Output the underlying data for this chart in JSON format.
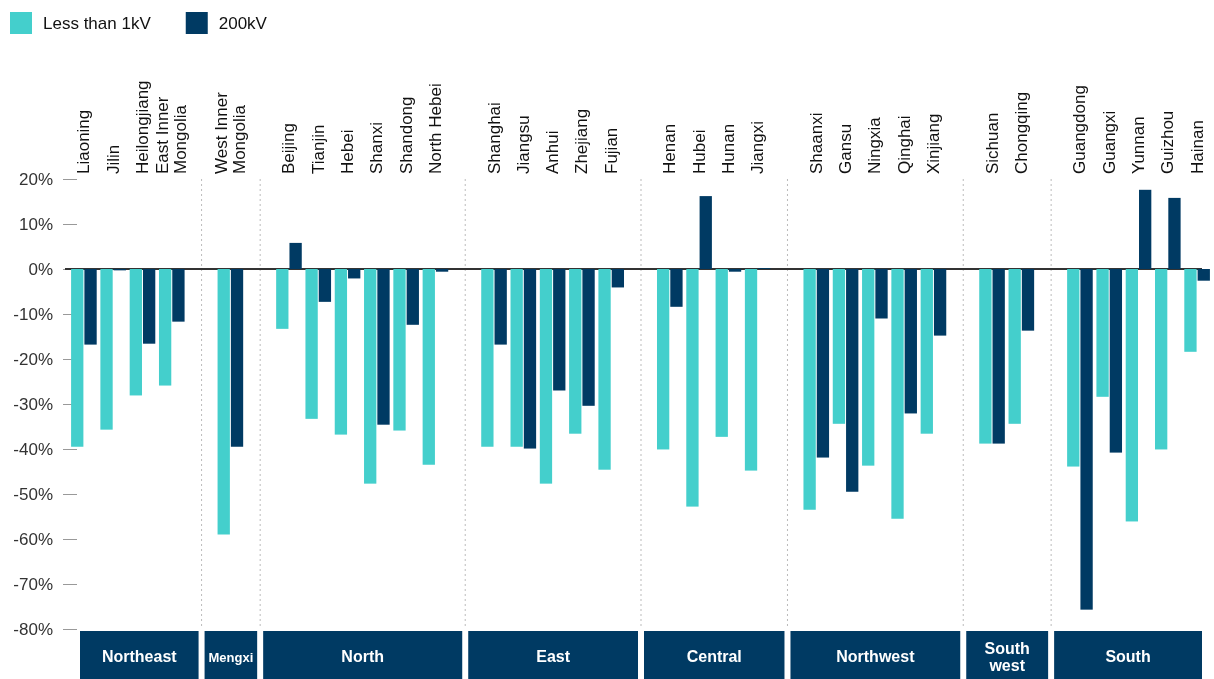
{
  "chart_data": {
    "type": "bar",
    "categories": [
      "Liaoning",
      "Jilin",
      "Heilongjiang",
      "East Inner Mongolia",
      null,
      "West Inner Mongolia",
      null,
      "Beijing",
      "Tianjin",
      "Hebei",
      "Shanxi",
      "Shandong",
      "North Hebei",
      null,
      "Shanghai",
      "Jiangsu",
      "Anhui",
      "Zhejiang",
      "Fujian",
      null,
      "Henan",
      "Hubei",
      "Hunan",
      "Jiangxi",
      null,
      "Shaanxi",
      "Gansu",
      "Ningxia",
      "Qinghai",
      "Xinjiang",
      null,
      "Sichuan",
      "Chongqing",
      null,
      "Guangdong",
      "Guangxi",
      "Yunnan",
      "Guizhou",
      "Hainan"
    ],
    "series": [
      {
        "name": "Less than 1kV",
        "color": "#44cfcc",
        "values": [
          -39.5,
          -35.7,
          -28.1,
          -25.9,
          null,
          -59.0,
          null,
          -13.3,
          -33.3,
          -36.8,
          -47.7,
          -35.9,
          -43.5,
          null,
          -39.5,
          -39.5,
          -47.7,
          -36.6,
          -44.6,
          null,
          -40.1,
          -52.8,
          -37.3,
          -44.8,
          null,
          -53.5,
          -34.4,
          -43.7,
          -55.5,
          -36.6,
          null,
          -38.8,
          -34.4,
          null,
          -43.9,
          -28.4,
          -56.1,
          -40.1,
          -18.4
        ]
      },
      {
        "name": "200kV",
        "color": "#003a63",
        "values": [
          -16.8,
          -0.3,
          -16.6,
          -11.7,
          null,
          -39.5,
          null,
          5.8,
          -7.3,
          -2.1,
          -34.6,
          -12.4,
          -0.6,
          null,
          -16.8,
          -39.9,
          -27.0,
          -30.4,
          -4.1,
          null,
          -8.4,
          16.2,
          -0.6,
          0.2,
          null,
          -41.9,
          -49.5,
          -11.0,
          -32.1,
          -14.8,
          null,
          -38.8,
          -13.7,
          null,
          -75.7,
          -40.8,
          17.6,
          15.8,
          -2.6
        ]
      }
    ],
    "ylim": [
      -80,
      20
    ],
    "yticks": [
      {
        "value": 20,
        "label": "20%"
      },
      {
        "value": 10,
        "label": "10%"
      },
      {
        "value": 0,
        "label": "0%"
      },
      {
        "value": -10,
        "label": "-10%"
      },
      {
        "value": -20,
        "label": "-20%"
      },
      {
        "value": -30,
        "label": "-30%"
      },
      {
        "value": -40,
        "label": "-40%"
      },
      {
        "value": -50,
        "label": "-50%"
      },
      {
        "value": -60,
        "label": "-60%"
      },
      {
        "value": -70,
        "label": "-70%"
      },
      {
        "value": -80,
        "label": "-80%"
      }
    ],
    "annotations": [
      "Northeast",
      "Mengxi",
      "North",
      "East",
      "Central",
      "Northwest",
      "South west",
      "South"
    ],
    "legend": "top left",
    "grid": "x"
  }
}
